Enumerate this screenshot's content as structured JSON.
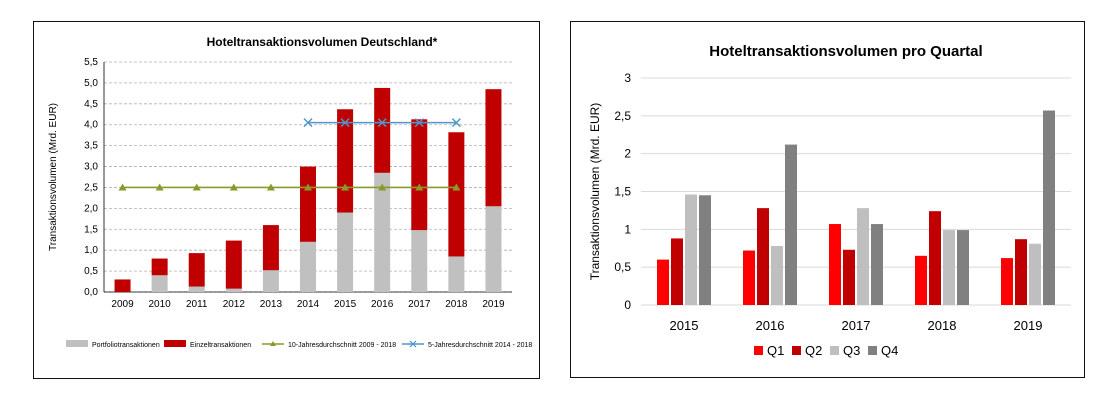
{
  "chart_data": [
    {
      "type": "bar",
      "stacked": true,
      "title": "Hoteltransaktionsvolumen Deutschland*",
      "xlabel": "",
      "ylabel": "Transaktionsvolumen (Mrd. EUR)",
      "ylim": [
        0,
        5.5
      ],
      "yticks": [
        "0,0",
        "0,5",
        "1,0",
        "1,5",
        "2,0",
        "2,5",
        "3,0",
        "3,5",
        "4,0",
        "4,5",
        "5,0",
        "5,5"
      ],
      "categories": [
        "2009",
        "2010",
        "2011",
        "2012",
        "2013",
        "2014",
        "2015",
        "2016",
        "2017",
        "2018",
        "2019"
      ],
      "series": [
        {
          "name": "Portfoliotransaktionen",
          "type": "bar",
          "color": "#c0c0c0",
          "values": [
            0.0,
            0.4,
            0.13,
            0.08,
            0.52,
            1.2,
            1.9,
            2.85,
            1.48,
            0.85,
            2.05
          ]
        },
        {
          "name": "Einzeltransaktionen",
          "type": "bar",
          "color": "#c00000",
          "values": [
            0.3,
            0.4,
            0.8,
            1.15,
            1.08,
            1.8,
            2.47,
            2.03,
            2.65,
            2.97,
            2.8
          ]
        },
        {
          "name": "10-Jahresdurchschnitt 2009 - 2018",
          "type": "line",
          "color": "#8a9a2a",
          "marker": "triangle",
          "values": [
            2.5,
            2.5,
            2.5,
            2.5,
            2.5,
            2.5,
            2.5,
            2.5,
            2.5,
            2.5,
            null
          ]
        },
        {
          "name": "5-Jahresdurchschnitt 2014 - 2018",
          "type": "line",
          "color": "#4f97c8",
          "marker": "x",
          "values": [
            null,
            null,
            null,
            null,
            null,
            4.05,
            4.05,
            4.05,
            4.05,
            4.05,
            null
          ]
        }
      ],
      "grid": true,
      "legend": "bottom"
    },
    {
      "type": "bar",
      "title": "Hoteltransaktionsvolumen pro Quartal",
      "xlabel": "",
      "ylabel": "Transaktionsvolumen (Mrd. EUR)",
      "ylim": [
        0,
        3
      ],
      "yticks": [
        "0",
        "0,5",
        "1",
        "1,5",
        "2",
        "2,5",
        "3"
      ],
      "categories": [
        "2015",
        "2016",
        "2017",
        "2018",
        "2019"
      ],
      "series": [
        {
          "name": "Q1",
          "color": "#ff0000",
          "values": [
            0.6,
            0.72,
            1.07,
            0.65,
            0.62
          ]
        },
        {
          "name": "Q2",
          "color": "#c00000",
          "values": [
            0.88,
            1.28,
            0.73,
            1.24,
            0.87
          ]
        },
        {
          "name": "Q3",
          "color": "#bfbfbf",
          "values": [
            1.46,
            0.78,
            1.28,
            0.99,
            0.81
          ]
        },
        {
          "name": "Q4",
          "color": "#808080",
          "values": [
            1.45,
            2.12,
            1.07,
            0.99,
            2.57
          ]
        }
      ],
      "grid": true,
      "legend": "bottom"
    }
  ]
}
